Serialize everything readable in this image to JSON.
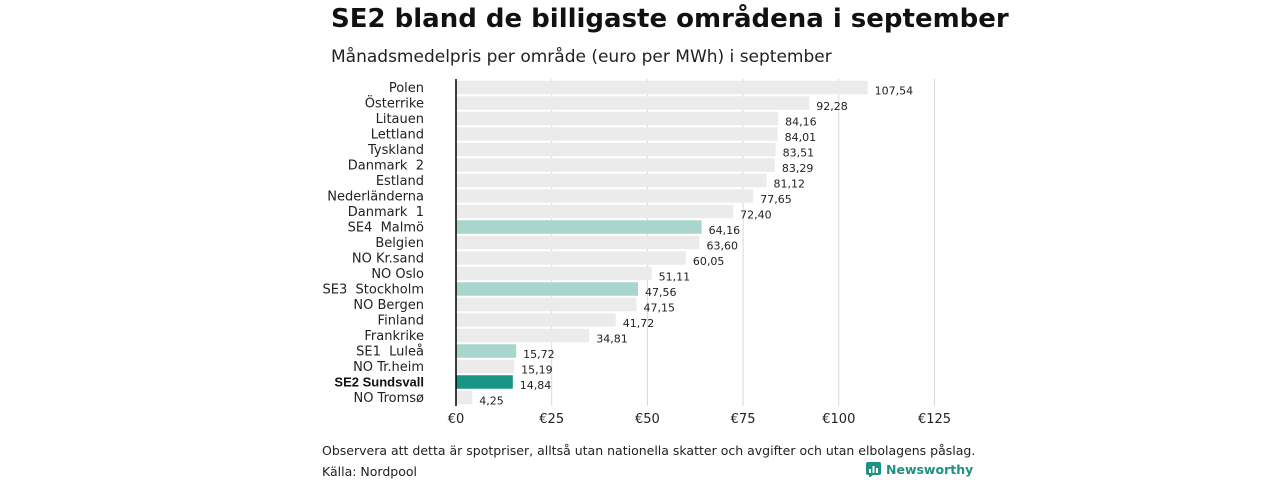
{
  "header": {
    "title": "SE2 bland de billigaste områdena i september",
    "subtitle": "Månadsmedelpris per område (euro per MWh) i september"
  },
  "footer": {
    "note": "Observera att detta är spotpriser, alltså utan nationella skatter och avgifter och utan elbolagens påslag.",
    "source": "Källa: Nordpool",
    "brand": "Newsworthy",
    "brand_icon": "bar-chart-logo-icon"
  },
  "colors": {
    "default_bar": "#ebebeb",
    "se_bar": "#a8d5cc",
    "highlight_bar": "#1a9485",
    "grid": "#d9d9d9",
    "axis": "#000000",
    "brand": "#1e9180"
  },
  "chart_data": {
    "type": "bar",
    "orientation": "horizontal",
    "title": "SE2 bland de billigaste områdena i september",
    "subtitle": "Månadsmedelpris per område (euro per MWh) i september",
    "xlabel": "",
    "ylabel": "",
    "xlim": [
      0,
      125
    ],
    "grid": true,
    "categories": [
      "Polen",
      "Österrike",
      "Litauen",
      "Lettland",
      "Tyskland",
      "Danmark  2",
      "Estland",
      "Nederländerna",
      "Danmark  1",
      "SE4  Malmö",
      "Belgien",
      "NO Kr.sand",
      "NO Oslo",
      "SE3  Stockholm",
      "NO Bergen",
      "Finland",
      "Frankrike",
      "SE1  Luleå",
      "NO Tr.heim",
      "SE2 Sundsvall",
      "NO Tromsø"
    ],
    "values": [
      107.54,
      92.28,
      84.16,
      84.01,
      83.51,
      83.29,
      81.12,
      77.65,
      72.4,
      64.16,
      63.6,
      60.05,
      51.11,
      47.56,
      47.15,
      41.72,
      34.81,
      15.72,
      15.19,
      14.84,
      4.25
    ],
    "value_labels": [
      "107,54",
      "92,28",
      "84,16",
      "84,01",
      "83,51",
      "83,29",
      "81,12",
      "77,65",
      "72,40",
      "64,16",
      "63,60",
      "60,05",
      "51,11",
      "47,56",
      "47,15",
      "41,72",
      "34,81",
      "15,72",
      "15,19",
      "14,84",
      "4,25"
    ],
    "groups": [
      "other",
      "other",
      "other",
      "other",
      "other",
      "other",
      "other",
      "other",
      "other",
      "se",
      "other",
      "other",
      "other",
      "se",
      "other",
      "other",
      "other",
      "se",
      "other",
      "highlight",
      "other"
    ],
    "ticks": [
      0,
      25,
      50,
      75,
      100,
      125
    ],
    "tick_labels": [
      "€0",
      "€25",
      "€50",
      "€75",
      "€100",
      "€125"
    ]
  }
}
